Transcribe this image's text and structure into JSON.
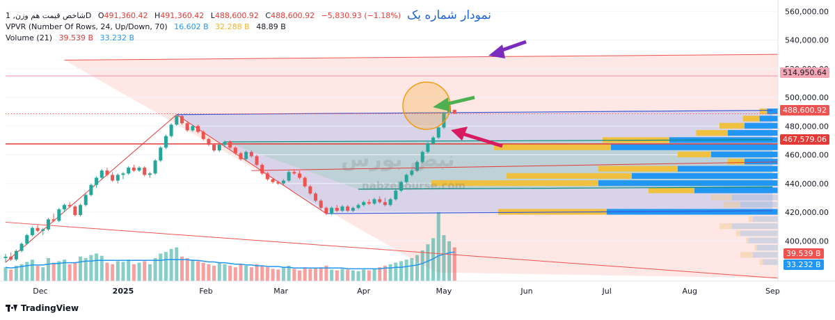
{
  "legend": {
    "symbol": "شاخص قیمت هم وزن, 1D",
    "ohlc": {
      "o_label": "O",
      "o": "491,360.42",
      "h_label": "H",
      "h": "491,360.42",
      "l_label": "L",
      "l": "488,600.92",
      "c_label": "C",
      "c": "488,600.92",
      "change": "−5,830.93 (−1.18%)"
    },
    "vpvr": {
      "label": "VPVR (Number Of Rows, 24, Up/Down, 70)",
      "v1": "16.602 B",
      "v2": "32.288 B",
      "v3": "48.89 B"
    },
    "volume": {
      "label": "Volume (21)",
      "v1": "39.539 B",
      "v2": "33.232 B"
    }
  },
  "annotation_title": "نمودار شماره یک",
  "watermark": {
    "text_fa": "نبض بورس",
    "text_en": "nabzebourse.com"
  },
  "branding": "TradingView",
  "price_tags": {
    "tag_514": "514,950.64",
    "tag_488": "488,600.92",
    "tag_467": "467,579.06",
    "tag_vol1": "39.539 B",
    "tag_vol2": "33.232 B"
  },
  "colors": {
    "up": "#26a69a",
    "down": "#ef5350",
    "channel_blue": "#3b5bdb",
    "channel_green": "#00897b",
    "red_line": "#e53935",
    "vpvr_blue": "#2196f3",
    "vpvr_yellow": "#f0c040",
    "volume_ma": "#2196f3",
    "title_blue": "#1e63d8",
    "arrow_purple": "#7b2cbf",
    "arrow_green": "#4caf50",
    "arrow_crimson": "#d81b60",
    "circle_orange": "#f39c12"
  },
  "chart_data": {
    "type": "candlestick",
    "timeframe": "1D",
    "y_axis": {
      "ticks": [
        560000,
        540000,
        520000,
        500000,
        480000,
        460000,
        440000,
        420000,
        400000
      ],
      "tick_labels": [
        "560,000.00",
        "540,000.00",
        "520,000.00",
        "500,000.00",
        "480,000.00",
        "460,000.00",
        "440,000.00",
        "420,000.00",
        "400,000.00"
      ],
      "range": [
        372000,
        564000
      ]
    },
    "x_axis": {
      "tick_labels": [
        "Dec",
        "2025",
        "Feb",
        "Mar",
        "Apr",
        "May",
        "Jun",
        "Jul",
        "Aug",
        "Sep"
      ],
      "tick_dates": [
        "2024-12-01",
        "2025-01-01",
        "2025-02-01",
        "2025-03-01",
        "2025-04-01",
        "2025-05-01",
        "2025-06-01",
        "2025-07-01",
        "2025-08-01",
        "2025-09-01"
      ],
      "range": [
        "2024-11-18",
        "2025-09-03"
      ]
    },
    "candles": [
      {
        "date": "2024-11-18",
        "o": 388000,
        "h": 391000,
        "l": 385000,
        "c": 389000
      },
      {
        "date": "2024-11-20",
        "o": 389000,
        "h": 392000,
        "l": 386000,
        "c": 387000
      },
      {
        "date": "2024-11-22",
        "o": 387000,
        "h": 394000,
        "l": 386000,
        "c": 393000
      },
      {
        "date": "2024-11-24",
        "o": 393000,
        "h": 399000,
        "l": 392000,
        "c": 398000
      },
      {
        "date": "2024-11-26",
        "o": 398000,
        "h": 405000,
        "l": 397000,
        "c": 404000
      },
      {
        "date": "2024-11-28",
        "o": 404000,
        "h": 410000,
        "l": 403000,
        "c": 409000
      },
      {
        "date": "2024-11-30",
        "o": 409000,
        "h": 411000,
        "l": 406000,
        "c": 407000
      },
      {
        "date": "2024-12-02",
        "o": 407000,
        "h": 409000,
        "l": 404000,
        "c": 408000
      },
      {
        "date": "2024-12-04",
        "o": 408000,
        "h": 416000,
        "l": 407000,
        "c": 415000
      },
      {
        "date": "2024-12-06",
        "o": 415000,
        "h": 419000,
        "l": 413000,
        "c": 414000
      },
      {
        "date": "2024-12-08",
        "o": 414000,
        "h": 423000,
        "l": 413000,
        "c": 422000
      },
      {
        "date": "2024-12-10",
        "o": 422000,
        "h": 426000,
        "l": 420000,
        "c": 425000
      },
      {
        "date": "2024-12-12",
        "o": 425000,
        "h": 427000,
        "l": 423000,
        "c": 424000
      },
      {
        "date": "2024-12-14",
        "o": 424000,
        "h": 425000,
        "l": 417000,
        "c": 418000
      },
      {
        "date": "2024-12-16",
        "o": 418000,
        "h": 426000,
        "l": 417000,
        "c": 425000
      },
      {
        "date": "2024-12-18",
        "o": 425000,
        "h": 433000,
        "l": 424000,
        "c": 432000
      },
      {
        "date": "2024-12-20",
        "o": 432000,
        "h": 440000,
        "l": 431000,
        "c": 439000
      },
      {
        "date": "2024-12-22",
        "o": 439000,
        "h": 445000,
        "l": 437000,
        "c": 444000
      },
      {
        "date": "2024-12-24",
        "o": 444000,
        "h": 450000,
        "l": 443000,
        "c": 449000
      },
      {
        "date": "2024-12-26",
        "o": 449000,
        "h": 451000,
        "l": 445000,
        "c": 446000
      },
      {
        "date": "2024-12-28",
        "o": 446000,
        "h": 448000,
        "l": 441000,
        "c": 442000
      },
      {
        "date": "2024-12-30",
        "o": 442000,
        "h": 447000,
        "l": 440000,
        "c": 446000
      },
      {
        "date": "2025-01-01",
        "o": 446000,
        "h": 448000,
        "l": 443000,
        "c": 447000
      },
      {
        "date": "2025-01-03",
        "o": 447000,
        "h": 452000,
        "l": 446000,
        "c": 451000
      },
      {
        "date": "2025-01-05",
        "o": 451000,
        "h": 453000,
        "l": 448000,
        "c": 449000
      },
      {
        "date": "2025-01-07",
        "o": 449000,
        "h": 452000,
        "l": 448000,
        "c": 451000
      },
      {
        "date": "2025-01-09",
        "o": 451000,
        "h": 452000,
        "l": 445000,
        "c": 446000
      },
      {
        "date": "2025-01-11",
        "o": 446000,
        "h": 448000,
        "l": 444000,
        "c": 447000
      },
      {
        "date": "2025-01-13",
        "o": 447000,
        "h": 457000,
        "l": 446000,
        "c": 456000
      },
      {
        "date": "2025-01-15",
        "o": 456000,
        "h": 466000,
        "l": 455000,
        "c": 465000
      },
      {
        "date": "2025-01-17",
        "o": 465000,
        "h": 474000,
        "l": 464000,
        "c": 473000
      },
      {
        "date": "2025-01-19",
        "o": 473000,
        "h": 482000,
        "l": 472000,
        "c": 481000
      },
      {
        "date": "2025-01-21",
        "o": 481000,
        "h": 488000,
        "l": 480000,
        "c": 487000
      },
      {
        "date": "2025-01-23",
        "o": 487000,
        "h": 488000,
        "l": 481000,
        "c": 482000
      },
      {
        "date": "2025-01-25",
        "o": 482000,
        "h": 483000,
        "l": 476000,
        "c": 477000
      },
      {
        "date": "2025-01-27",
        "o": 477000,
        "h": 481000,
        "l": 476000,
        "c": 480000
      },
      {
        "date": "2025-01-29",
        "o": 480000,
        "h": 481000,
        "l": 475000,
        "c": 476000
      },
      {
        "date": "2025-01-31",
        "o": 476000,
        "h": 477000,
        "l": 470000,
        "c": 471000
      },
      {
        "date": "2025-02-02",
        "o": 471000,
        "h": 472000,
        "l": 466000,
        "c": 467000
      },
      {
        "date": "2025-02-04",
        "o": 467000,
        "h": 468000,
        "l": 462000,
        "c": 463000
      },
      {
        "date": "2025-02-06",
        "o": 463000,
        "h": 468000,
        "l": 462000,
        "c": 467000
      },
      {
        "date": "2025-02-08",
        "o": 467000,
        "h": 470000,
        "l": 465000,
        "c": 469000
      },
      {
        "date": "2025-02-10",
        "o": 469000,
        "h": 470000,
        "l": 464000,
        "c": 465000
      },
      {
        "date": "2025-02-12",
        "o": 465000,
        "h": 466000,
        "l": 460000,
        "c": 461000
      },
      {
        "date": "2025-02-14",
        "o": 461000,
        "h": 462000,
        "l": 456000,
        "c": 457000
      },
      {
        "date": "2025-02-16",
        "o": 457000,
        "h": 463000,
        "l": 456000,
        "c": 462000
      },
      {
        "date": "2025-02-18",
        "o": 462000,
        "h": 463000,
        "l": 458000,
        "c": 459000
      },
      {
        "date": "2025-02-20",
        "o": 459000,
        "h": 460000,
        "l": 452000,
        "c": 453000
      },
      {
        "date": "2025-02-22",
        "o": 453000,
        "h": 454000,
        "l": 446000,
        "c": 447000
      },
      {
        "date": "2025-02-24",
        "o": 447000,
        "h": 448000,
        "l": 442000,
        "c": 443000
      },
      {
        "date": "2025-02-26",
        "o": 443000,
        "h": 444000,
        "l": 440000,
        "c": 441000
      },
      {
        "date": "2025-02-28",
        "o": 441000,
        "h": 442000,
        "l": 439000,
        "c": 440000
      },
      {
        "date": "2025-03-02",
        "o": 440000,
        "h": 443000,
        "l": 439000,
        "c": 442000
      },
      {
        "date": "2025-03-04",
        "o": 442000,
        "h": 449000,
        "l": 441000,
        "c": 448000
      },
      {
        "date": "2025-03-06",
        "o": 448000,
        "h": 450000,
        "l": 446000,
        "c": 447000
      },
      {
        "date": "2025-03-08",
        "o": 447000,
        "h": 449000,
        "l": 443000,
        "c": 444000
      },
      {
        "date": "2025-03-10",
        "o": 444000,
        "h": 445000,
        "l": 437000,
        "c": 438000
      },
      {
        "date": "2025-03-12",
        "o": 438000,
        "h": 439000,
        "l": 432000,
        "c": 433000
      },
      {
        "date": "2025-03-14",
        "o": 433000,
        "h": 434000,
        "l": 427000,
        "c": 428000
      },
      {
        "date": "2025-03-16",
        "o": 428000,
        "h": 429000,
        "l": 422000,
        "c": 423000
      },
      {
        "date": "2025-03-18",
        "o": 423000,
        "h": 424000,
        "l": 418000,
        "c": 419000
      },
      {
        "date": "2025-03-20",
        "o": 419000,
        "h": 424000,
        "l": 418000,
        "c": 423000
      },
      {
        "date": "2025-03-22",
        "o": 423000,
        "h": 425000,
        "l": 420000,
        "c": 421000
      },
      {
        "date": "2025-03-24",
        "o": 421000,
        "h": 425000,
        "l": 420000,
        "c": 424000
      },
      {
        "date": "2025-03-26",
        "o": 424000,
        "h": 425000,
        "l": 420000,
        "c": 421000
      },
      {
        "date": "2025-03-28",
        "o": 421000,
        "h": 424000,
        "l": 420000,
        "c": 423000
      },
      {
        "date": "2025-03-30",
        "o": 423000,
        "h": 426000,
        "l": 422000,
        "c": 425000
      },
      {
        "date": "2025-04-01",
        "o": 425000,
        "h": 428000,
        "l": 424000,
        "c": 427000
      },
      {
        "date": "2025-04-03",
        "o": 427000,
        "h": 429000,
        "l": 425000,
        "c": 426000
      },
      {
        "date": "2025-04-05",
        "o": 426000,
        "h": 430000,
        "l": 425000,
        "c": 429000
      },
      {
        "date": "2025-04-07",
        "o": 429000,
        "h": 431000,
        "l": 426000,
        "c": 427000
      },
      {
        "date": "2025-04-09",
        "o": 427000,
        "h": 430000,
        "l": 424000,
        "c": 425000
      },
      {
        "date": "2025-04-11",
        "o": 425000,
        "h": 430000,
        "l": 424000,
        "c": 429000
      },
      {
        "date": "2025-04-13",
        "o": 429000,
        "h": 436000,
        "l": 428000,
        "c": 435000
      },
      {
        "date": "2025-04-15",
        "o": 435000,
        "h": 442000,
        "l": 434000,
        "c": 441000
      },
      {
        "date": "2025-04-17",
        "o": 441000,
        "h": 447000,
        "l": 440000,
        "c": 446000
      },
      {
        "date": "2025-04-19",
        "o": 446000,
        "h": 450000,
        "l": 445000,
        "c": 449000
      },
      {
        "date": "2025-04-21",
        "o": 449000,
        "h": 456000,
        "l": 448000,
        "c": 455000
      },
      {
        "date": "2025-04-23",
        "o": 455000,
        "h": 463000,
        "l": 454000,
        "c": 462000
      },
      {
        "date": "2025-04-25",
        "o": 462000,
        "h": 469000,
        "l": 461000,
        "c": 468000
      },
      {
        "date": "2025-04-27",
        "o": 468000,
        "h": 473000,
        "l": 467000,
        "c": 472000
      },
      {
        "date": "2025-04-29",
        "o": 472000,
        "h": 480000,
        "l": 471000,
        "c": 479000
      },
      {
        "date": "2025-05-01",
        "o": 479000,
        "h": 490000,
        "l": 478000,
        "c": 489000
      },
      {
        "date": "2025-05-03",
        "o": 489000,
        "h": 495000,
        "l": 488000,
        "c": 494000
      },
      {
        "date": "2025-05-05",
        "o": 491360,
        "h": 491360,
        "l": 488600,
        "c": 488600
      }
    ],
    "volume": {
      "series": [
        {
          "name": "Volume",
          "values": [
            18,
            15,
            20,
            22,
            25,
            28,
            20,
            18,
            30,
            24,
            26,
            28,
            22,
            24,
            32,
            30,
            34,
            36,
            33,
            24,
            22,
            26,
            25,
            28,
            22,
            24,
            26,
            22,
            30,
            36,
            38,
            42,
            44,
            32,
            30,
            28,
            26,
            24,
            22,
            20,
            24,
            22,
            20,
            18,
            22,
            20,
            18,
            22,
            20,
            18,
            16,
            15,
            18,
            20,
            16,
            14,
            18,
            16,
            17,
            18,
            20,
            15,
            14,
            16,
            15,
            14,
            13,
            15,
            14,
            16,
            18,
            20,
            22,
            24,
            26,
            28,
            30,
            34,
            40,
            48,
            56,
            90,
            60,
            52,
            44
          ]
        },
        {
          "name": "Volume MA",
          "values": [
            18,
            17,
            18,
            19,
            20,
            21,
            21,
            21,
            22,
            23,
            23,
            24,
            24,
            24,
            25,
            26,
            26,
            27,
            27,
            27,
            27,
            27,
            27,
            27,
            27,
            27,
            27,
            27,
            27,
            27,
            28,
            28,
            28,
            28,
            28,
            27,
            27,
            26,
            25,
            25,
            24,
            24,
            23,
            22,
            22,
            21,
            21,
            20,
            20,
            19,
            19,
            19,
            18,
            18,
            17,
            17,
            17,
            17,
            17,
            17,
            17,
            17,
            17,
            17,
            16,
            16,
            16,
            16,
            16,
            16,
            16,
            17,
            17,
            18,
            18,
            19,
            20,
            21,
            23,
            26,
            29,
            33,
            35,
            37,
            38
          ]
        }
      ]
    },
    "vpvr_rows": [
      {
        "price": 490000,
        "up": 9,
        "down": 13
      },
      {
        "price": 485000,
        "up": 20,
        "down": 22
      },
      {
        "price": 480000,
        "up": 30,
        "down": 40
      },
      {
        "price": 475000,
        "up": 38,
        "down": 60
      },
      {
        "price": 470000,
        "up": 80,
        "down": 130
      },
      {
        "price": 465000,
        "up": 140,
        "down": 200
      },
      {
        "price": 460000,
        "up": 40,
        "down": 80
      },
      {
        "price": 455000,
        "up": 20,
        "down": 40
      },
      {
        "price": 450000,
        "up": 95,
        "down": 120
      },
      {
        "price": 445000,
        "up": 150,
        "down": 175
      },
      {
        "price": 440000,
        "up": 200,
        "down": 215
      },
      {
        "price": 435000,
        "up": 55,
        "down": 100
      },
      {
        "price": 430000,
        "up": 25,
        "down": 55
      },
      {
        "price": 425000,
        "up": 20,
        "down": 45
      },
      {
        "price": 420000,
        "up": 130,
        "down": 205
      },
      {
        "price": 415000,
        "up": 5,
        "down": 30
      },
      {
        "price": 410000,
        "up": 15,
        "down": 55
      },
      {
        "price": 405000,
        "up": 5,
        "down": 45
      },
      {
        "price": 400000,
        "up": 3,
        "down": 35
      },
      {
        "price": 395000,
        "up": 3,
        "down": 25
      },
      {
        "price": 390000,
        "up": 15,
        "down": 30
      },
      {
        "price": 385000,
        "up": 4,
        "down": 18
      }
    ],
    "levels": [
      514950.64,
      488600.92,
      467579.06
    ],
    "channels": [
      {
        "name": "blue-top",
        "from": {
          "date": "2025-01-21",
          "price": 488000
        },
        "to": {
          "date": "2025-09-01",
          "price": 491000
        }
      },
      {
        "name": "blue-bottom",
        "from": {
          "date": "2025-03-18",
          "price": 419000
        },
        "to": {
          "date": "2025-09-01",
          "price": 421000
        }
      },
      {
        "name": "green-top",
        "from": {
          "date": "2025-02-08",
          "price": 469000
        },
        "to": {
          "date": "2025-09-01",
          "price": 470500
        }
      },
      {
        "name": "green-bottom",
        "from": {
          "date": "2025-03-30",
          "price": 436000
        },
        "to": {
          "date": "2025-09-01",
          "price": 437500
        }
      },
      {
        "name": "red-top",
        "from": {
          "date": "2024-12-10",
          "price": 526000
        },
        "to": {
          "date": "2025-09-03",
          "price": 530000
        }
      },
      {
        "name": "red-bottom",
        "from": {
          "date": "2024-11-18",
          "price": 413000
        },
        "to": {
          "date": "2025-09-03",
          "price": 374000
        }
      }
    ]
  }
}
